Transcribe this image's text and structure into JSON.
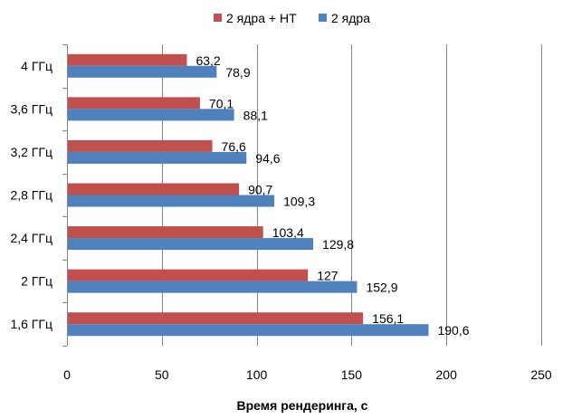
{
  "chart_data": {
    "type": "bar",
    "orientation": "horizontal",
    "categories": [
      "4 ГГц",
      "3,6 ГГц",
      "3,2 ГГц",
      "2,8 ГГц",
      "2,4 ГГц",
      "2 ГГц",
      "1,6 ГГц"
    ],
    "series": [
      {
        "name": "2 ядра + HT",
        "color": "#c0504d",
        "values": [
          63.2,
          70.1,
          76.6,
          90.7,
          103.4,
          127,
          156.1
        ],
        "labels": [
          "63,2",
          "70,1",
          "76,6",
          "90,7",
          "103,4",
          "127",
          "156,1"
        ]
      },
      {
        "name": "2 ядра",
        "color": "#4f81bd",
        "values": [
          78.9,
          88.1,
          94.6,
          109.3,
          129.8,
          152.9,
          190.6
        ],
        "labels": [
          "78,9",
          "88,1",
          "94,6",
          "109,3",
          "129,8",
          "152,9",
          "190,6"
        ]
      }
    ],
    "xlabel": "Время рендеринга, с",
    "xlim": [
      0,
      250
    ],
    "xticks": [
      0,
      50,
      100,
      150,
      200,
      250
    ],
    "xtick_labels": [
      "0",
      "50",
      "100",
      "150",
      "200",
      "250"
    ],
    "grid": "vertical",
    "legend_position": "top"
  }
}
